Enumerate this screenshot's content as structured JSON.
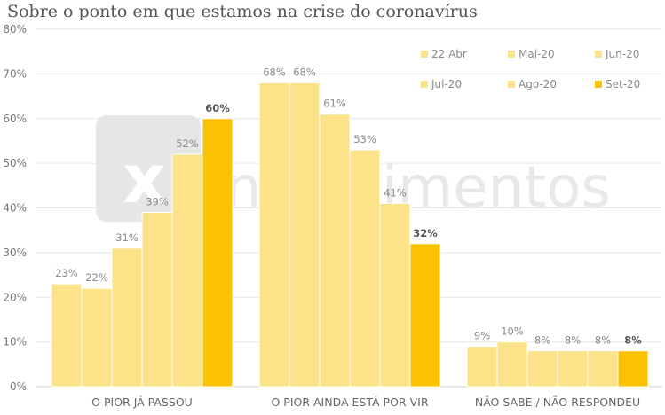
{
  "chart_data": {
    "type": "bar",
    "title": "Sobre o ponto em que estamos na crise do coronavírus",
    "categories": [
      "O PIOR JÁ PASSOU",
      "O PIOR AINDA ESTÁ POR VIR",
      "NÃO SABE / NÃO RESPONDEU"
    ],
    "series": [
      {
        "name": "22 Abr",
        "values": [
          23,
          68,
          9
        ],
        "labels": [
          "23%",
          "68%",
          "9%"
        ]
      },
      {
        "name": "Mai-20",
        "values": [
          22,
          68,
          10
        ],
        "labels": [
          "22%",
          "68%",
          "10%"
        ]
      },
      {
        "name": "Jun-20",
        "values": [
          31,
          61,
          8
        ],
        "labels": [
          "31%",
          "61%",
          "8%"
        ]
      },
      {
        "name": "Jul-20",
        "values": [
          39,
          53,
          8
        ],
        "labels": [
          "39%",
          "53%",
          "8%"
        ]
      },
      {
        "name": "Ago-20",
        "values": [
          52,
          41,
          8
        ],
        "labels": [
          "52%",
          "41%",
          "8%"
        ]
      },
      {
        "name": "Set-20",
        "values": [
          60,
          32,
          8
        ],
        "labels": [
          "60%",
          "32%",
          "8%"
        ]
      }
    ],
    "ylim": [
      0,
      80
    ],
    "yticks": [
      "0%",
      "10%",
      "20%",
      "30%",
      "40%",
      "50%",
      "60%",
      "70%",
      "80%"
    ],
    "grid": true,
    "legend": "top-right",
    "colors": {
      "light": "#FCE38A",
      "highlight": "#FAC200",
      "grid": "#E6E6E6",
      "watermark": "#E4E4E4"
    }
  },
  "watermark": {
    "text": "investimentos"
  }
}
